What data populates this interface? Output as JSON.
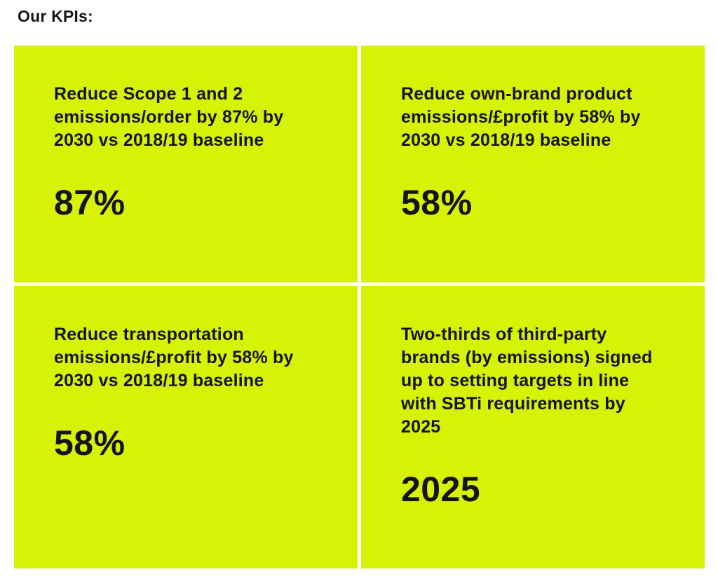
{
  "page": {
    "heading": "Our KPIs:"
  },
  "kpis": {
    "cards": [
      {
        "description": "Reduce Scope 1 and 2\nemissions/order by 87% by\n2030 vs 2018/19 baseline",
        "value": "87%"
      },
      {
        "description": "Reduce own-brand product\nemissions/£profit by 58% by\n2030 vs 2018/19 baseline",
        "value": "58%"
      },
      {
        "description": "Reduce transportation\nemissions/£profit by 58% by\n2030 vs 2018/19 baseline",
        "value": "58%"
      },
      {
        "description": "Two-thirds of third-party\nbrands (by emissions) signed\nup to setting targets in line\nwith SBTi requirements by\n2025",
        "value": "2025"
      }
    ]
  },
  "colors": {
    "card_background": "#d7f205",
    "divider": "#ffffff",
    "page_background": "#ffffff",
    "text": "#141414"
  }
}
